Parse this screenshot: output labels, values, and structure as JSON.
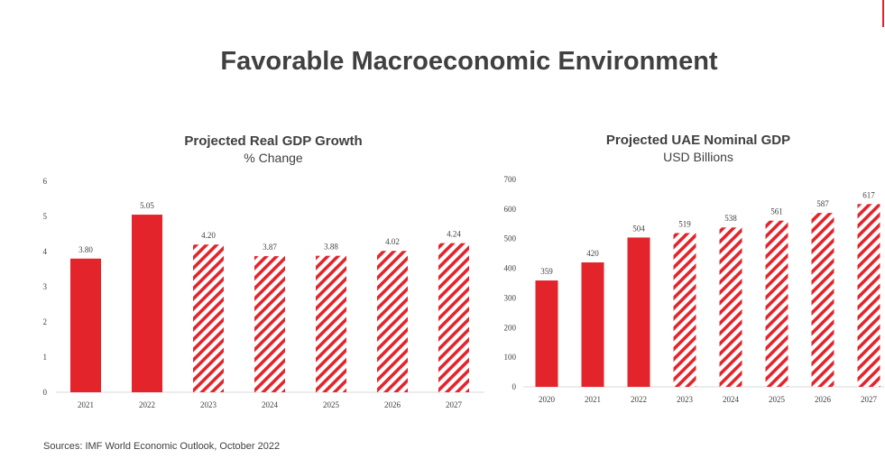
{
  "page": {
    "title": "Favorable Macroeconomic Environment",
    "sources": "Sources: IMF World Economic Outlook, October 2022",
    "accent_color": "#e3242b"
  },
  "chart_data": [
    {
      "type": "bar",
      "title": "Projected Real GDP Growth",
      "subtitle": "% Change",
      "categories": [
        "2021",
        "2022",
        "2023",
        "2024",
        "2025",
        "2026",
        "2027"
      ],
      "values": [
        3.8,
        5.05,
        4.2,
        3.87,
        3.88,
        4.02,
        4.24
      ],
      "value_labels": [
        "3.80",
        "5.05",
        "4.20",
        "3.87",
        "3.88",
        "4.02",
        "4.24"
      ],
      "projected": [
        false,
        false,
        true,
        true,
        true,
        true,
        true
      ],
      "ylim": [
        0,
        6
      ],
      "yticks": [
        "0",
        "1",
        "2",
        "3",
        "4",
        "5",
        "6"
      ],
      "grid": false,
      "color": "#e3242b"
    },
    {
      "type": "bar",
      "title": "Projected UAE Nominal GDP",
      "subtitle": "USD Billions",
      "categories": [
        "2020",
        "2021",
        "2022",
        "2023",
        "2024",
        "2025",
        "2026",
        "2027"
      ],
      "values": [
        359,
        420,
        504,
        519,
        538,
        561,
        587,
        617
      ],
      "value_labels": [
        "359",
        "420",
        "504",
        "519",
        "538",
        "561",
        "587",
        "617"
      ],
      "projected": [
        false,
        false,
        false,
        true,
        true,
        true,
        true,
        true
      ],
      "ylim": [
        0,
        700
      ],
      "yticks": [
        "0",
        "100",
        "200",
        "300",
        "400",
        "500",
        "600",
        "700"
      ],
      "grid": false,
      "color": "#e3242b"
    }
  ]
}
